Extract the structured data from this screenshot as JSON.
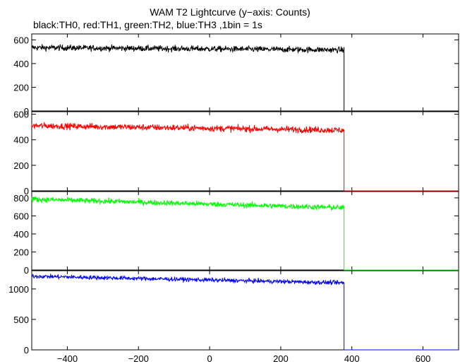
{
  "chart_data": {
    "type": "line",
    "title": "WAM T2 Lightcurve (y−axis: Counts)",
    "subtitle": "black:TH0, red:TH1, green:TH2, blue:TH3 ,1bin = 1s",
    "xlabel": "",
    "ylabel": "",
    "xlim": [
      -500,
      700
    ],
    "x_ticks": [
      -400,
      -200,
      0,
      200,
      400,
      600
    ],
    "x_tick_labels": [
      "−400",
      "−200",
      "0",
      "200",
      "400",
      "600"
    ],
    "bin_seconds": 1,
    "data_end_x": 378,
    "grid": false,
    "legend": "none",
    "panels": [
      {
        "name": "TH0",
        "color": "#000000",
        "ylim": [
          0,
          650
        ],
        "y_ticks": [
          0,
          200,
          400,
          600
        ],
        "trend": [
          535,
          515
        ],
        "noise": 18
      },
      {
        "name": "TH1",
        "color": "#ff0000",
        "ylim": [
          0,
          620
        ],
        "y_ticks": [
          0,
          200,
          400,
          600
        ],
        "trend": [
          510,
          475
        ],
        "noise": 18
      },
      {
        "name": "TH2",
        "color": "#00ff00",
        "ylim": [
          0,
          870
        ],
        "y_ticks": [
          0,
          200,
          400,
          600,
          800
        ],
        "trend": [
          785,
          690
        ],
        "noise": 22
      },
      {
        "name": "TH3",
        "color": "#0000ff",
        "ylim": [
          0,
          1300
        ],
        "y_ticks": [
          0,
          500,
          1000
        ],
        "trend": [
          1210,
          1100
        ],
        "noise": 25
      }
    ]
  }
}
